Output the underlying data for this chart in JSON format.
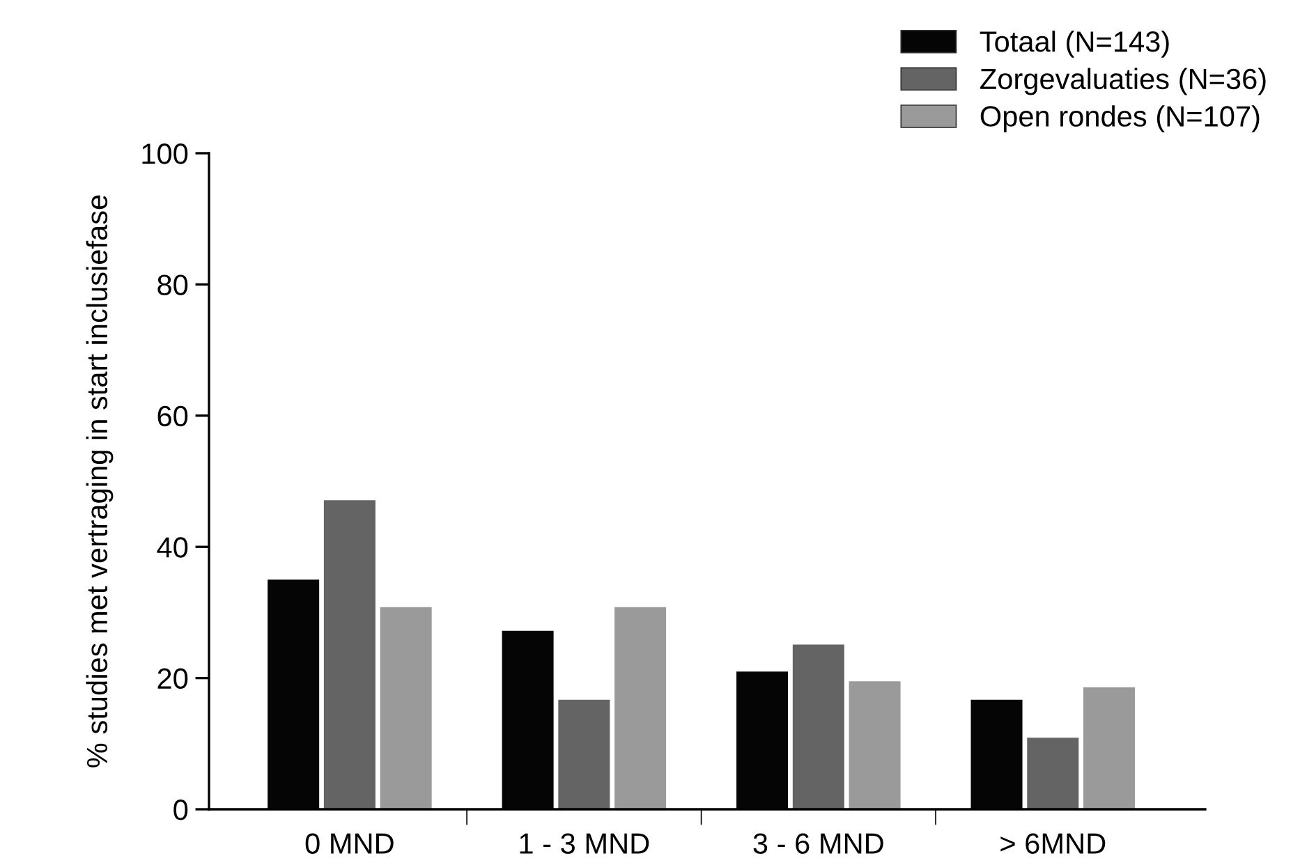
{
  "chart_data": {
    "type": "bar",
    "ylabel": "% studies met vertraging in start inclusiefase",
    "categories": [
      "0 MND",
      "1 - 3 MND",
      "3 - 6 MND",
      "> 6MND"
    ],
    "series": [
      {
        "name": "Totaal (N=143)",
        "color": "#050505",
        "values": [
          35,
          27.2,
          21,
          16.7
        ]
      },
      {
        "name": "Zorgevaluaties (N=36)",
        "color": "#646464",
        "values": [
          47.1,
          16.7,
          25.1,
          10.9
        ]
      },
      {
        "name": "Open rondes (N=107)",
        "color": "#9a9a9a",
        "values": [
          30.8,
          30.8,
          19.5,
          18.6
        ]
      }
    ],
    "ylim": [
      0,
      100
    ],
    "yticks": [
      0,
      20,
      40,
      60,
      80,
      100
    ],
    "grid": false,
    "legend": "top right"
  }
}
